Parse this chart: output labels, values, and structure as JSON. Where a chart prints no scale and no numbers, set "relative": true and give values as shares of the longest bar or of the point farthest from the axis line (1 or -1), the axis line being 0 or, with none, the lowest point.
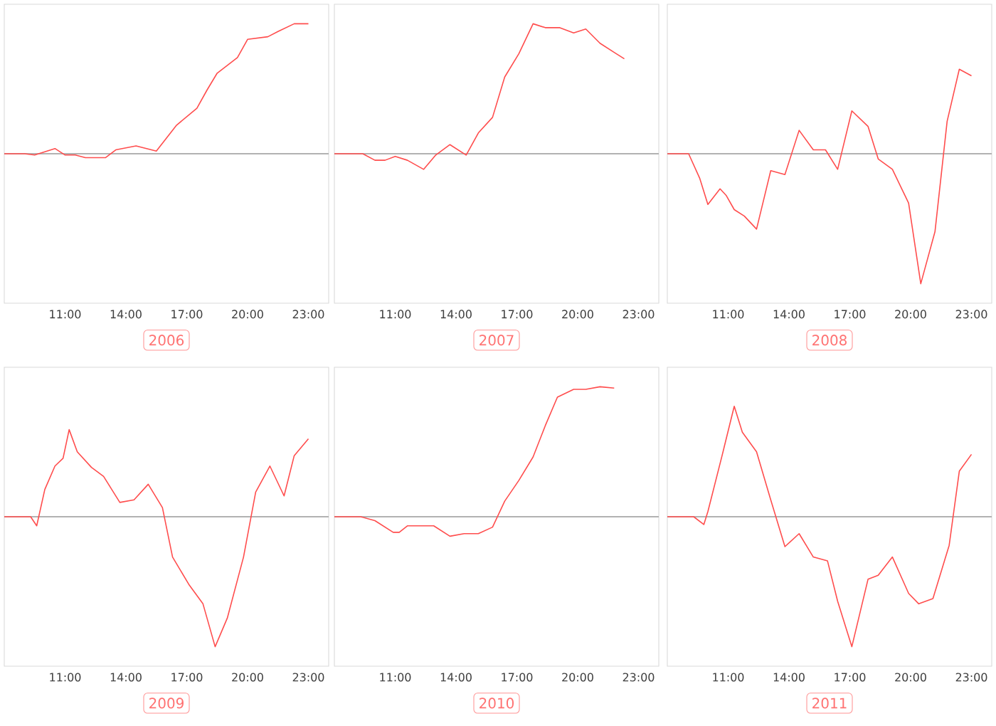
{
  "chart_data": [
    {
      "type": "line",
      "title": "2006",
      "relative": true,
      "color": "#ff4d4d",
      "xlim": [
        8,
        24
      ],
      "xticks": [
        {
          "value": 11,
          "label": "11:00"
        },
        {
          "value": 14,
          "label": "14:00"
        },
        {
          "value": 17,
          "label": "17:00"
        },
        {
          "value": 20,
          "label": "20:00"
        },
        {
          "value": 23,
          "label": "23:00"
        }
      ],
      "x": [
        8,
        9,
        9.5,
        10.5,
        11,
        11.5,
        12,
        13,
        13.5,
        14.5,
        15.5,
        16.5,
        17.5,
        18,
        18.5,
        19.5,
        20,
        21,
        21.5,
        22.3,
        23
      ],
      "values": [
        0,
        0,
        -0.01,
        0.04,
        -0.01,
        -0.01,
        -0.03,
        -0.03,
        0.03,
        0.06,
        0.02,
        0.22,
        0.35,
        0.49,
        0.62,
        0.74,
        0.88,
        0.9,
        0.94,
        1,
        1
      ]
    },
    {
      "type": "line",
      "title": "2007",
      "relative": true,
      "color": "#ff4d4d",
      "xlim": [
        8,
        24
      ],
      "xticks": [
        {
          "value": 11,
          "label": "11:00"
        },
        {
          "value": 14,
          "label": "14:00"
        },
        {
          "value": 17,
          "label": "17:00"
        },
        {
          "value": 20,
          "label": "20:00"
        },
        {
          "value": 23,
          "label": "23:00"
        }
      ],
      "x": [
        8,
        9.4,
        10,
        10.5,
        11,
        11.6,
        12.4,
        13,
        13.7,
        14.5,
        15.1,
        15.8,
        16.4,
        17.1,
        17.8,
        18.4,
        19.1,
        19.8,
        20.4,
        21.1,
        21.8,
        22.3
      ],
      "values": [
        0,
        0,
        -0.05,
        -0.05,
        -0.02,
        -0.05,
        -0.12,
        -0.01,
        0.07,
        -0.01,
        0.16,
        0.28,
        0.59,
        0.77,
        1,
        0.97,
        0.97,
        0.93,
        0.96,
        0.85,
        0.78,
        0.73
      ]
    },
    {
      "type": "line",
      "title": "2008",
      "relative": true,
      "color": "#ff4d4d",
      "xlim": [
        8,
        24
      ],
      "xticks": [
        {
          "value": 11,
          "label": "11:00"
        },
        {
          "value": 14,
          "label": "14:00"
        },
        {
          "value": 17,
          "label": "17:00"
        },
        {
          "value": 20,
          "label": "20:00"
        },
        {
          "value": 23,
          "label": "23:00"
        }
      ],
      "x": [
        8,
        9.05,
        9.6,
        10,
        10.6,
        10.9,
        11.3,
        11.8,
        12.4,
        13.1,
        13.8,
        14.5,
        15.2,
        15.8,
        16.4,
        17.1,
        17.9,
        18.4,
        19.1,
        19.9,
        20.5,
        21.2,
        21.8,
        22.4,
        23
      ],
      "values": [
        0,
        0,
        -0.19,
        -0.39,
        -0.27,
        -0.32,
        -0.43,
        -0.48,
        -0.58,
        -0.13,
        -0.16,
        0.18,
        0.03,
        0.03,
        -0.12,
        0.33,
        0.21,
        -0.04,
        -0.12,
        -0.38,
        -1,
        -0.6,
        0.25,
        0.65,
        0.6
      ]
    },
    {
      "type": "line",
      "title": "2009",
      "relative": true,
      "color": "#ff4d4d",
      "xlim": [
        8,
        24
      ],
      "xticks": [
        {
          "value": 11,
          "label": "11:00"
        },
        {
          "value": 14,
          "label": "14:00"
        },
        {
          "value": 17,
          "label": "17:00"
        },
        {
          "value": 20,
          "label": "20:00"
        },
        {
          "value": 23,
          "label": "23:00"
        }
      ],
      "x": [
        8,
        9.3,
        9.6,
        10,
        10.5,
        10.9,
        11.2,
        11.6,
        12.3,
        12.9,
        13.7,
        14.4,
        15.1,
        15.8,
        16.3,
        17.1,
        17.8,
        18.4,
        19,
        19.8,
        20.4,
        21.1,
        21.8,
        22.3,
        23
      ],
      "values": [
        0,
        0,
        -0.07,
        0.21,
        0.39,
        0.45,
        0.67,
        0.5,
        0.38,
        0.31,
        0.11,
        0.13,
        0.25,
        0.07,
        -0.31,
        -0.52,
        -0.67,
        -1,
        -0.78,
        -0.31,
        0.19,
        0.39,
        0.16,
        0.47,
        0.6
      ]
    },
    {
      "type": "line",
      "title": "2010",
      "relative": true,
      "color": "#ff4d4d",
      "xlim": [
        8,
        24
      ],
      "xticks": [
        {
          "value": 11,
          "label": "11:00"
        },
        {
          "value": 14,
          "label": "14:00"
        },
        {
          "value": 17,
          "label": "17:00"
        },
        {
          "value": 20,
          "label": "20:00"
        },
        {
          "value": 23,
          "label": "23:00"
        }
      ],
      "x": [
        8,
        9.3,
        10,
        10.9,
        11.2,
        11.6,
        12.9,
        13.7,
        14.4,
        15.1,
        15.8,
        16.4,
        17.1,
        17.8,
        18.4,
        19,
        19.8,
        20.4,
        21.1,
        21.8
      ],
      "values": [
        0,
        0,
        -0.03,
        -0.12,
        -0.12,
        -0.07,
        -0.07,
        -0.15,
        -0.13,
        -0.13,
        -0.08,
        0.12,
        0.28,
        0.46,
        0.7,
        0.92,
        0.98,
        0.98,
        1,
        0.99
      ]
    },
    {
      "type": "line",
      "title": "2011",
      "relative": true,
      "color": "#ff4d4d",
      "xlim": [
        8,
        24
      ],
      "xticks": [
        {
          "value": 11,
          "label": "11:00"
        },
        {
          "value": 14,
          "label": "14:00"
        },
        {
          "value": 17,
          "label": "17:00"
        },
        {
          "value": 20,
          "label": "20:00"
        },
        {
          "value": 23,
          "label": "23:00"
        }
      ],
      "x": [
        8,
        9.3,
        9.8,
        10,
        10.7,
        11.3,
        11.7,
        12.4,
        13.1,
        13.8,
        14.5,
        15.2,
        15.9,
        16.4,
        17.1,
        17.9,
        18.4,
        19.1,
        19.9,
        20.4,
        21.1,
        21.9,
        22.4,
        23
      ],
      "values": [
        0,
        0,
        -0.06,
        0.04,
        0.47,
        0.85,
        0.65,
        0.5,
        0.13,
        -0.23,
        -0.13,
        -0.31,
        -0.34,
        -0.65,
        -1,
        -0.48,
        -0.45,
        -0.31,
        -0.59,
        -0.67,
        -0.63,
        -0.22,
        0.35,
        0.48
      ]
    }
  ]
}
